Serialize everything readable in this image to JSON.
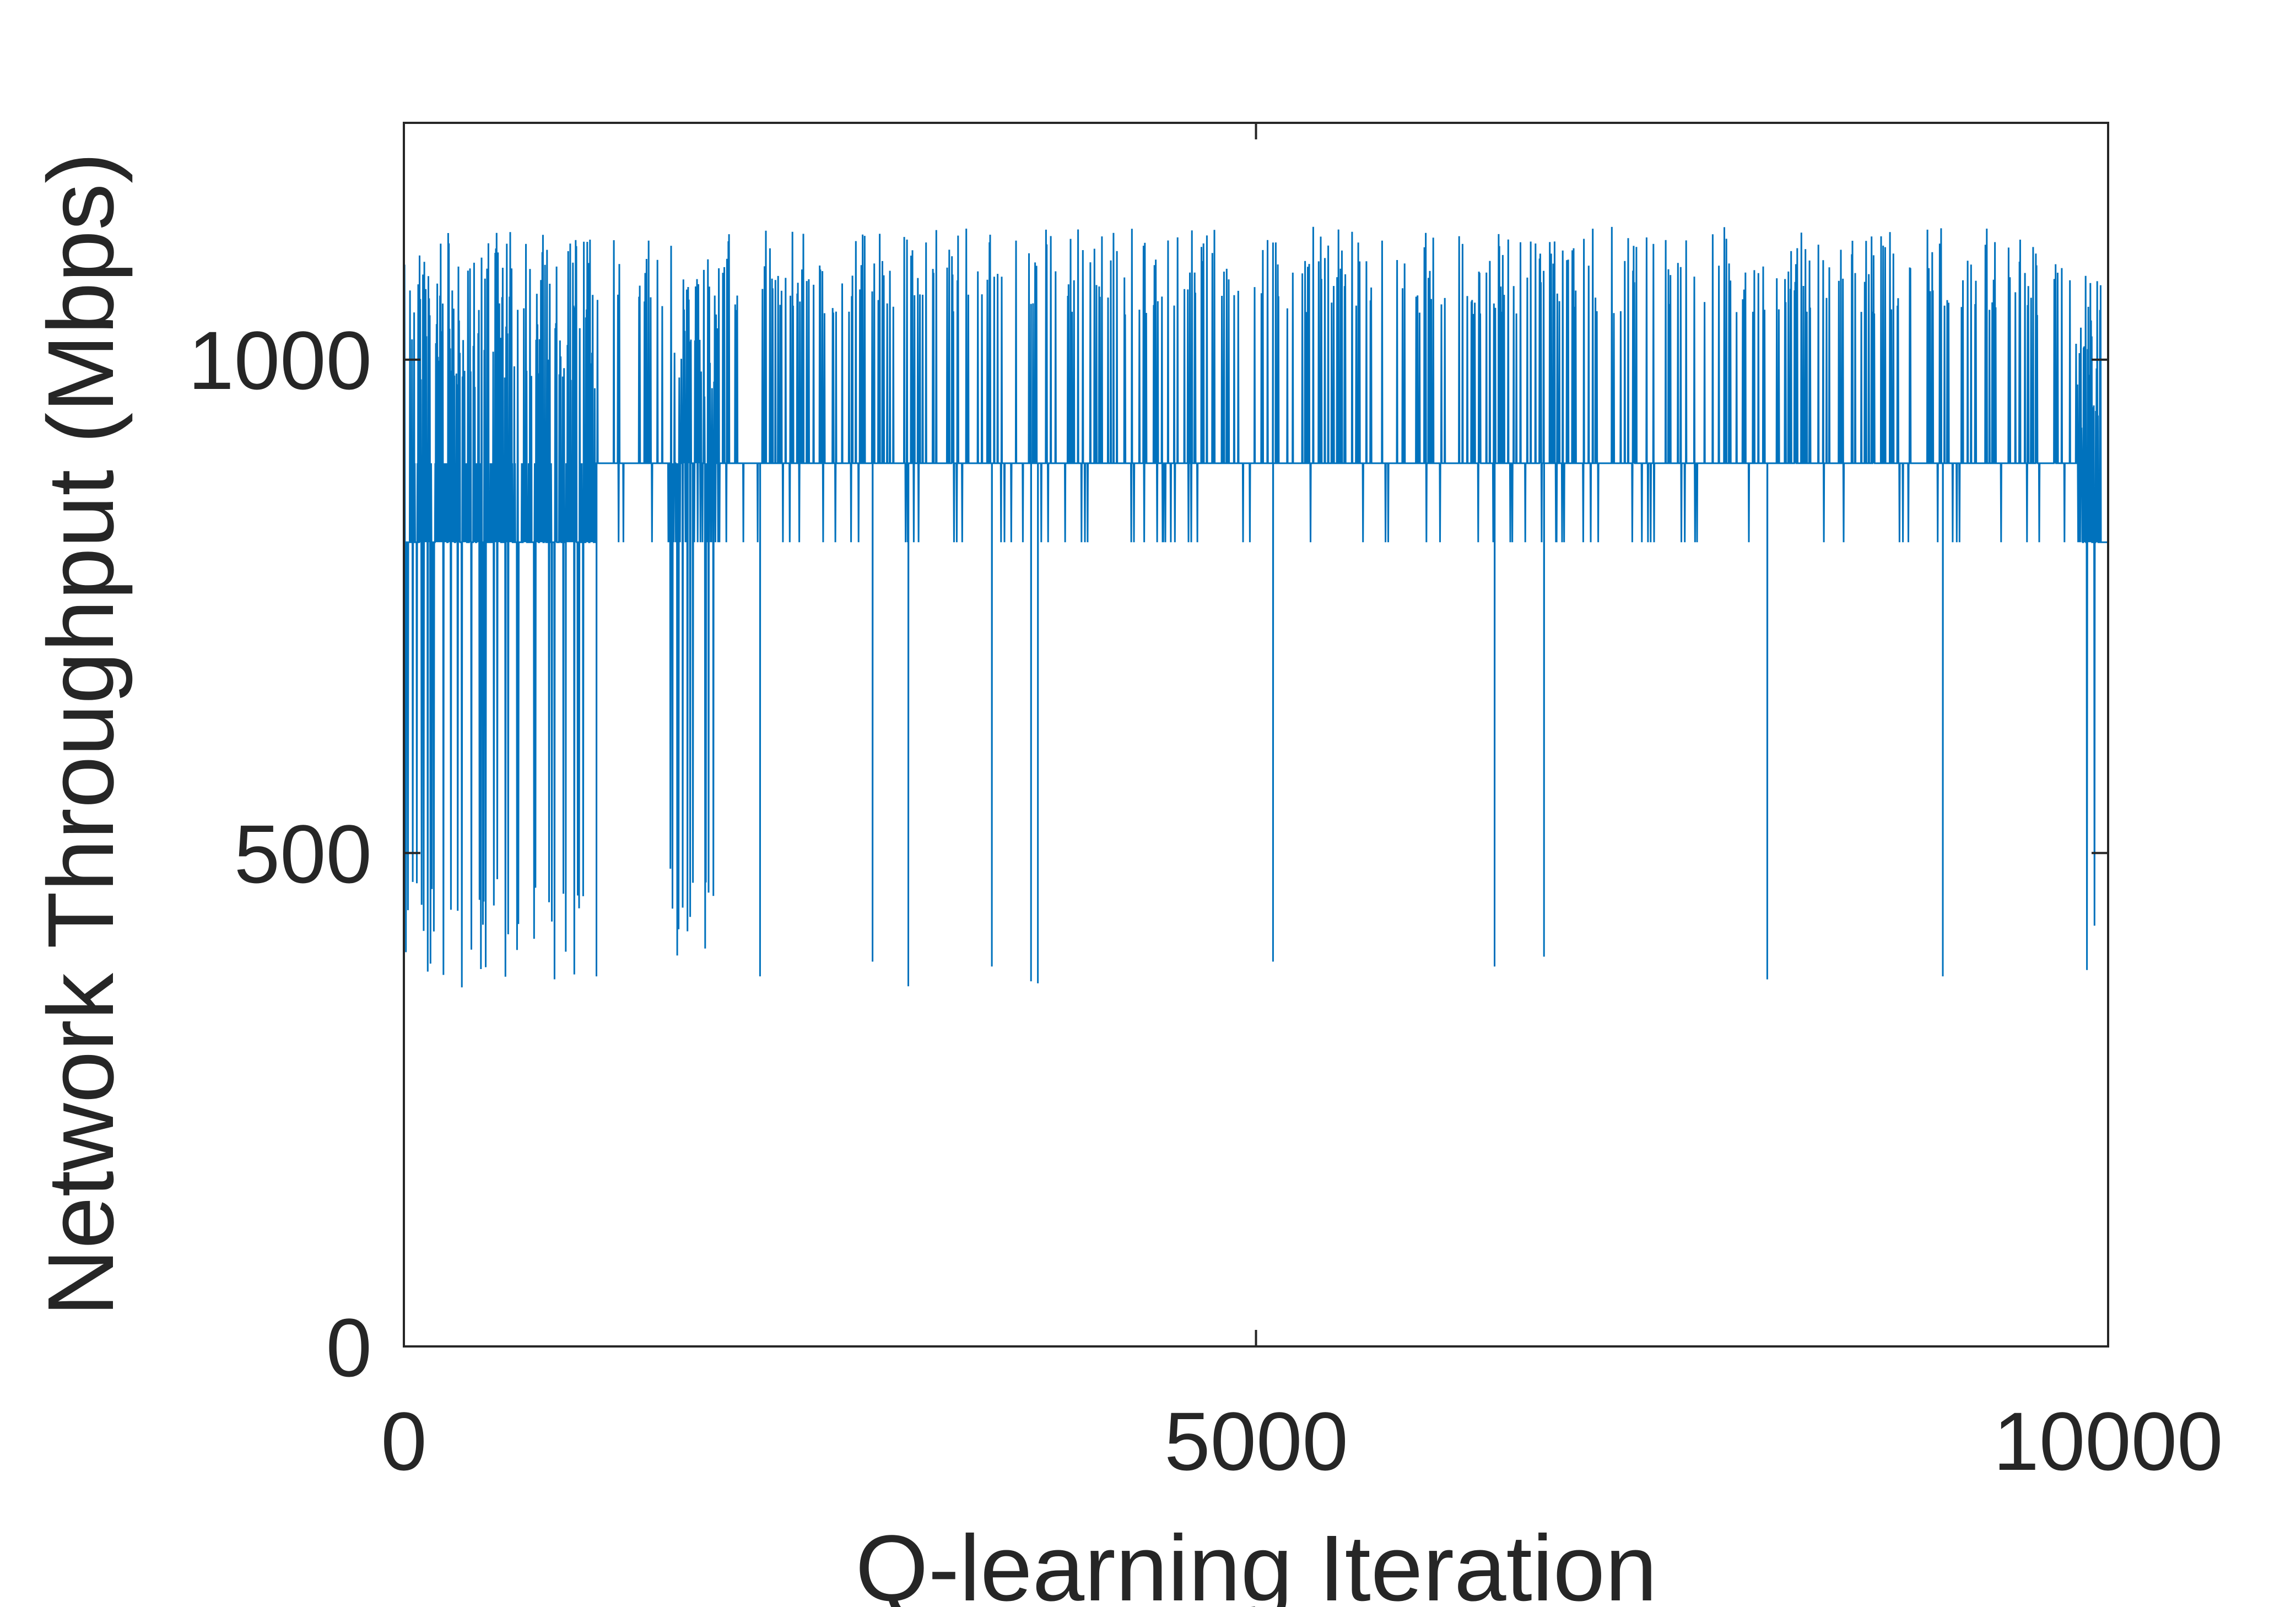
{
  "chart_data": {
    "type": "line",
    "title": "",
    "xlabel": "Q-learning Iteration",
    "ylabel": "Network Throughput (Mbps)",
    "xlim": [
      0,
      10000
    ],
    "ylim": [
      0,
      1240
    ],
    "xticks": [
      0,
      5000,
      10000
    ],
    "xtick_labels": [
      "0",
      "5000",
      "10000"
    ],
    "yticks": [
      0,
      500,
      1000
    ],
    "ytick_labels": [
      "0",
      "500",
      "1000"
    ],
    "grid": false,
    "legend": "none",
    "colors": {
      "line": "#0072BD",
      "axis": "#262626"
    },
    "series": [
      {
        "baseline_levels": [
          {
            "x_range": [
              0,
              1120
            ],
            "level": 815
          },
          {
            "x_range": [
              1120,
              9850
            ],
            "level": 895
          },
          {
            "x_range": [
              9850,
              10000
            ],
            "level": 815
          }
        ],
        "dense_blocks": [
          {
            "x_range": [
              0,
              1120
            ],
            "min": 360,
            "max": 1130
          },
          {
            "x_range": [
              1560,
              1850
            ],
            "min": 370,
            "max": 1120
          },
          {
            "x_range": [
              9810,
              9940
            ],
            "min": 370,
            "max": 1090
          }
        ],
        "values_summary": {
          "min": 330,
          "max": 1135
        },
        "low_spikes": [
          {
            "x": 950,
            "y": 400
          },
          {
            "x": 1130,
            "y": 375
          },
          {
            "x": 2090,
            "y": 375
          },
          {
            "x": 2750,
            "y": 390
          },
          {
            "x": 2960,
            "y": 365
          },
          {
            "x": 3450,
            "y": 385
          },
          {
            "x": 3680,
            "y": 370
          },
          {
            "x": 3720,
            "y": 368
          },
          {
            "x": 5100,
            "y": 390
          },
          {
            "x": 6400,
            "y": 385
          },
          {
            "x": 6690,
            "y": 395
          },
          {
            "x": 8000,
            "y": 372
          },
          {
            "x": 9030,
            "y": 375
          }
        ]
      }
    ]
  }
}
